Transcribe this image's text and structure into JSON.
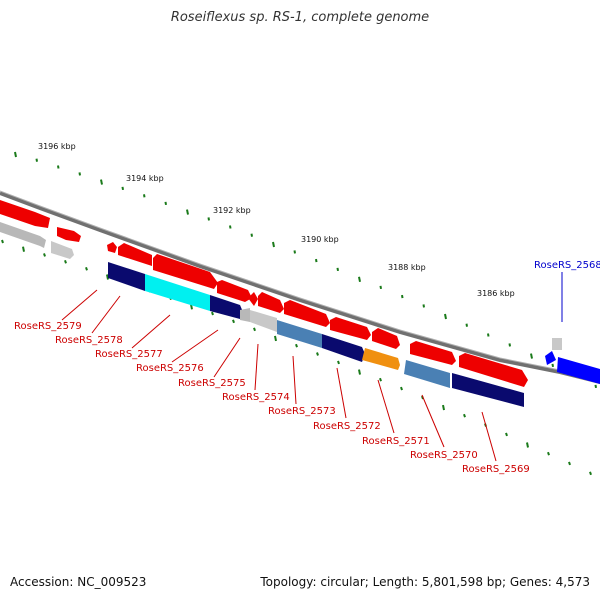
{
  "title": "Roseiflexus sp. RS-1, complete genome",
  "footer": {
    "accession": "Accession: NC_009523",
    "summary": "Topology: circular; Length: 5,801,598 bp; Genes: 4,573"
  },
  "colors": {
    "cds_red": "#ee0000",
    "gray": "#c0c0c0",
    "navy": "#0a0a6e",
    "cyan": "#00f0f0",
    "steel": "#4a80b4",
    "orange": "#f09010",
    "blue": "#0000ff",
    "tick_green": "#1a7a1a",
    "label_red": "#cc0000",
    "label_blue": "#0000cc",
    "backbone": "#808080"
  },
  "scale_labels": [
    "3196 kbp",
    "3194 kbp",
    "3192 kbp",
    "3190 kbp",
    "3188 kbp",
    "3186 kbp"
  ],
  "gene_labels": [
    {
      "text": "RoseRS_2579",
      "color": "red"
    },
    {
      "text": "RoseRS_2578",
      "color": "red"
    },
    {
      "text": "RoseRS_2577",
      "color": "red"
    },
    {
      "text": "RoseRS_2576",
      "color": "red"
    },
    {
      "text": "RoseRS_2575",
      "color": "red"
    },
    {
      "text": "RoseRS_2574",
      "color": "red"
    },
    {
      "text": "RoseRS_2573",
      "color": "red"
    },
    {
      "text": "RoseRS_2572",
      "color": "red"
    },
    {
      "text": "RoseRS_2571",
      "color": "red"
    },
    {
      "text": "RoseRS_2570",
      "color": "red"
    },
    {
      "text": "RoseRS_2569",
      "color": "red"
    },
    {
      "text": "RoseRS_2568",
      "color": "blue"
    }
  ]
}
